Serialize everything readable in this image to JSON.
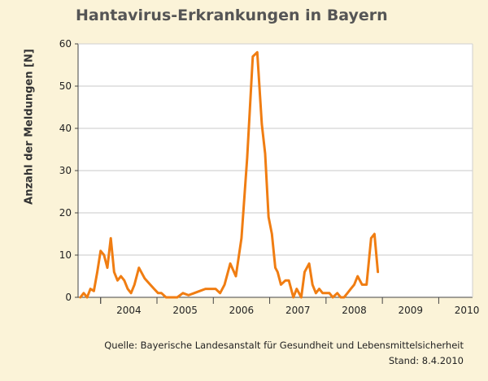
{
  "chart_data": {
    "type": "line",
    "title": "Hantavirus-Erkrankungen in Bayern",
    "ylabel": "Anzahl der Meldungen [N]",
    "xlabel": "",
    "ylim": [
      0,
      60
    ],
    "yticks": [
      "0",
      "10",
      "20",
      "30",
      "40",
      "50",
      "60"
    ],
    "xlim": [
      2003.6,
      2010.6
    ],
    "xtick_labels": [
      "2004",
      "2005",
      "2006",
      "2007",
      "2008",
      "2009",
      "2010"
    ],
    "grid": true,
    "series_color": "#f07d12",
    "series": [
      {
        "x": [
          2003.64,
          2003.7,
          2003.76,
          2003.82,
          2003.88,
          2003.94,
          2004.0,
          2004.06,
          2004.12,
          2004.18,
          2004.24,
          2004.3,
          2004.36,
          2004.42,
          2004.48,
          2004.54,
          2004.6,
          2004.68,
          2004.78,
          2004.88,
          2004.95,
          2005.02,
          2005.08,
          2005.16,
          2005.26,
          2005.36,
          2005.46,
          2005.56,
          2005.66,
          2005.76,
          2005.86,
          2005.96,
          2006.04,
          2006.12,
          2006.2,
          2006.3,
          2006.4,
          2006.5,
          2006.6,
          2006.7,
          2006.78,
          2006.86,
          2006.92,
          2006.98,
          2007.04,
          2007.1,
          2007.14,
          2007.2,
          2007.28,
          2007.34,
          2007.42,
          2007.48,
          2007.56,
          2007.62,
          2007.7,
          2007.76,
          2007.82,
          2007.88,
          2007.94,
          2008.0,
          2008.06,
          2008.12,
          2008.2,
          2008.26,
          2008.32,
          2008.38,
          2008.44,
          2008.5,
          2008.56,
          2008.64,
          2008.72,
          2008.8,
          2008.86,
          2008.92,
          2008.98,
          2009.04,
          2009.1,
          2009.18,
          2009.26,
          2009.32,
          2009.38,
          2009.46,
          2009.52,
          2009.58,
          2009.63,
          2009.68
        ],
        "y": [
          0,
          1,
          0,
          2,
          1.5,
          6,
          11,
          10,
          7,
          14,
          6,
          4,
          5,
          4,
          2,
          1,
          3,
          7,
          4.5,
          3,
          2,
          1,
          1,
          0,
          0,
          0,
          1,
          0.5,
          1,
          1.5,
          2,
          2,
          2,
          1,
          3,
          8,
          5,
          14,
          33,
          57,
          58,
          41,
          34,
          19,
          15,
          7,
          6,
          3,
          4,
          4,
          0,
          2,
          0,
          6,
          8,
          3,
          1,
          2,
          1,
          1,
          1,
          0,
          1,
          0,
          0,
          1,
          2,
          3,
          5,
          3,
          3,
          14,
          15,
          6,
          null,
          null,
          null,
          null,
          null,
          null,
          null,
          null,
          null,
          null,
          null,
          null
        ]
      }
    ]
  },
  "footer": {
    "source": "Quelle: Bayerische Landesanstalt für Gesundheit und Lebensmittelsicherheit",
    "date": "Stand: 8.4.2010"
  }
}
